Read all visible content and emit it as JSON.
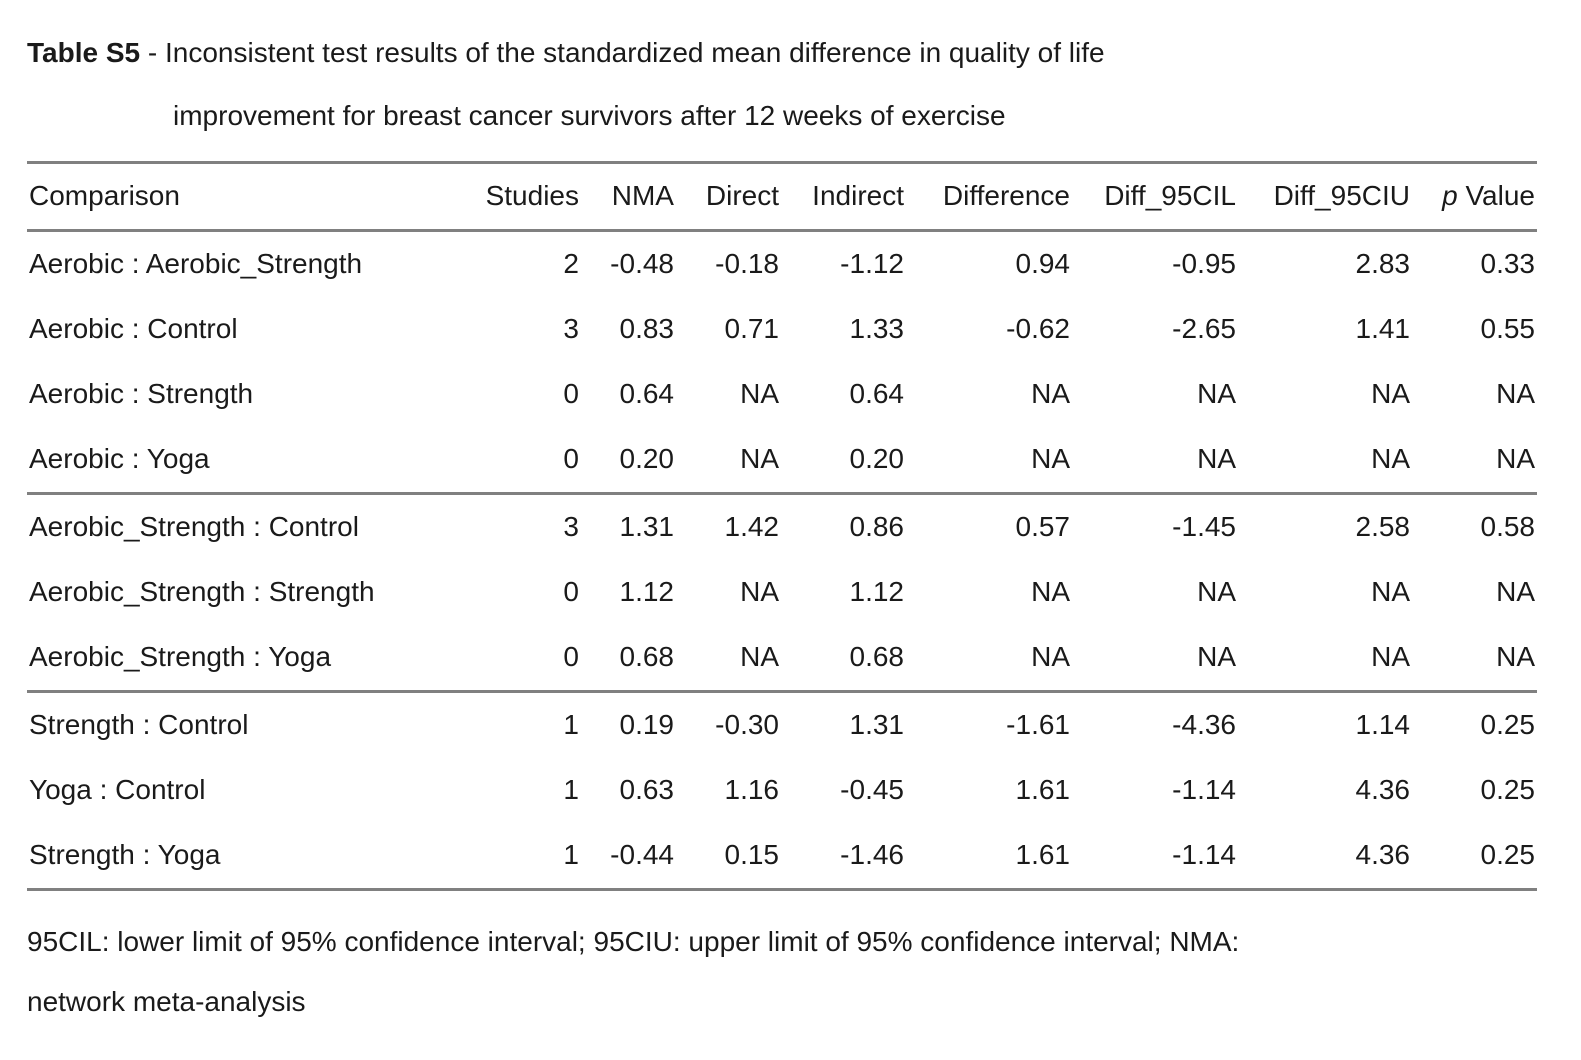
{
  "colors": {
    "background": "#ffffff",
    "text": "#1a1a1a",
    "rule": "#808080"
  },
  "title": {
    "label": "Table S5",
    "separator": " - ",
    "line1": "Inconsistent test results of the standardized mean difference in quality of life",
    "line2": "improvement for breast cancer survivors after 12 weeks of exercise"
  },
  "table": {
    "columns": [
      {
        "label": "Comparison",
        "align": "left"
      },
      {
        "label": "Studies",
        "align": "right"
      },
      {
        "label": "NMA",
        "align": "right"
      },
      {
        "label": "Direct",
        "align": "right"
      },
      {
        "label": "Indirect",
        "align": "right"
      },
      {
        "label": "Difference",
        "align": "right"
      },
      {
        "label": "Diff_95CIL",
        "align": "right"
      },
      {
        "label": "Diff_95CIU",
        "align": "right"
      },
      {
        "label_parts": {
          "italic": "p",
          "rest": " Value"
        },
        "align": "right"
      }
    ],
    "rows": [
      [
        "Aerobic : Aerobic_Strength",
        "2",
        "-0.48",
        "-0.18",
        "-1.12",
        "0.94",
        "-0.95",
        "2.83",
        "0.33"
      ],
      [
        "Aerobic : Control",
        "3",
        "0.83",
        "0.71",
        "1.33",
        "-0.62",
        "-2.65",
        "1.41",
        "0.55"
      ],
      [
        "Aerobic : Strength",
        "0",
        "0.64",
        "NA",
        "0.64",
        "NA",
        "NA",
        "NA",
        "NA"
      ],
      [
        "Aerobic : Yoga",
        "0",
        "0.20",
        "NA",
        "0.20",
        "NA",
        "NA",
        "NA",
        "NA"
      ],
      [
        "Aerobic_Strength : Control",
        "3",
        "1.31",
        "1.42",
        "0.86",
        "0.57",
        "-1.45",
        "2.58",
        "0.58"
      ],
      [
        "Aerobic_Strength : Strength",
        "0",
        "1.12",
        "NA",
        "1.12",
        "NA",
        "NA",
        "NA",
        "NA"
      ],
      [
        "Aerobic_Strength : Yoga",
        "0",
        "0.68",
        "NA",
        "0.68",
        "NA",
        "NA",
        "NA",
        "NA"
      ],
      [
        "Strength : Control",
        "1",
        "0.19",
        "-0.30",
        "1.31",
        "-1.61",
        "-4.36",
        "1.14",
        "0.25"
      ],
      [
        "Yoga : Control",
        "1",
        "0.63",
        "1.16",
        "-0.45",
        "1.61",
        "-1.14",
        "4.36",
        "0.25"
      ],
      [
        "Strength : Yoga",
        "1",
        "-0.44",
        "0.15",
        "-1.46",
        "1.61",
        "-1.14",
        "4.36",
        "0.25"
      ]
    ],
    "group_separator_after": [
      3,
      6
    ]
  },
  "footnote": {
    "line1": "95CIL: lower limit of 95% confidence interval; 95CIU: upper limit of 95% confidence interval; NMA:",
    "line2": "network meta-analysis"
  }
}
